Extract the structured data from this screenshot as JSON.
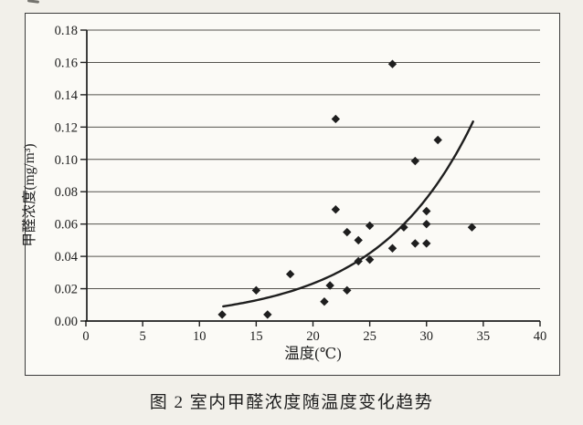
{
  "figure": {
    "caption": "图 2  室内甲醛浓度随温度变化趋势"
  },
  "chart_data": {
    "type": "scatter",
    "title": "",
    "xlabel": "温度(℃)",
    "ylabel": "甲醛浓度(mg/m³)",
    "xlim": [
      0,
      40
    ],
    "ylim": [
      0,
      0.18
    ],
    "x_tick_labels": [
      "0",
      "5",
      "10",
      "15",
      "20",
      "25",
      "30",
      "35",
      "40"
    ],
    "y_tick_labels": [
      "0.00",
      "0.02",
      "0.04",
      "0.06",
      "0.08",
      "0.10",
      "0.12",
      "0.14",
      "0.16",
      "0.18"
    ],
    "grid": "horizontal",
    "legend": "none",
    "marker": "filled-diamond",
    "points": [
      [
        12,
        0.004
      ],
      [
        15,
        0.019
      ],
      [
        16,
        0.004
      ],
      [
        18,
        0.029
      ],
      [
        21,
        0.012
      ],
      [
        21.5,
        0.022
      ],
      [
        23,
        0.019
      ],
      [
        22,
        0.069
      ],
      [
        23,
        0.055
      ],
      [
        24,
        0.05
      ],
      [
        24,
        0.037
      ],
      [
        25,
        0.038
      ],
      [
        25,
        0.059
      ],
      [
        27,
        0.045
      ],
      [
        28,
        0.058
      ],
      [
        29,
        0.048
      ],
      [
        30,
        0.048
      ],
      [
        30,
        0.06
      ],
      [
        30,
        0.068
      ],
      [
        34,
        0.058
      ],
      [
        22,
        0.125
      ],
      [
        27,
        0.159
      ],
      [
        29,
        0.099
      ],
      [
        31,
        0.112
      ]
    ],
    "trend_line": {
      "shape": "exponential",
      "a": 0.00217,
      "b": 0.1185,
      "x_start": 12.1,
      "x_end": 34.1
    },
    "colors": {
      "ink": "#1e1e1e",
      "grid": "#55534e",
      "frame": "#3c3c3c",
      "paper": "#fbfaf6",
      "page_bg": "#f2f0ea"
    }
  }
}
